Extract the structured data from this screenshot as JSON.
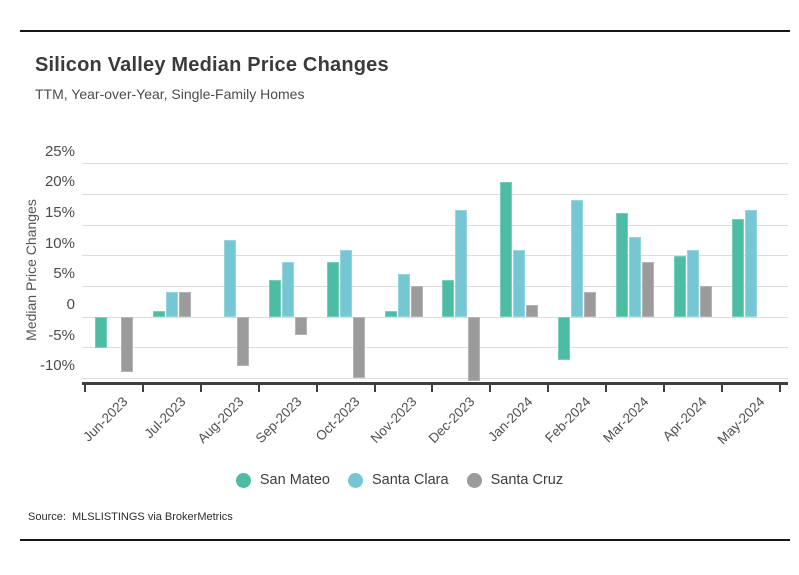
{
  "header": {
    "title": "Silicon Valley Median Price Changes",
    "subtitle": "TTM, Year-over-Year, Single-Family Homes"
  },
  "chart_data": {
    "type": "bar",
    "title": "Silicon Valley Median Price Changes",
    "subtitle": "TTM, Year-over-Year, Single-Family Homes",
    "xlabel": "",
    "ylabel": "Median Price Changes",
    "ylim": [
      -12.5,
      27.5
    ],
    "grid": true,
    "legend_position": "bottom",
    "categories": [
      "Jun-2023",
      "Jul-2023",
      "Aug-2023",
      "Sep-2023",
      "Oct-2023",
      "Nov-2023",
      "Dec-2023",
      "Jan-2024",
      "Feb-2024",
      "Mar-2024",
      "Apr-2024",
      "May-2024"
    ],
    "yticks": [
      {
        "value": 25,
        "label": "25%"
      },
      {
        "value": 20,
        "label": "20%"
      },
      {
        "value": 15,
        "label": "15%"
      },
      {
        "value": 10,
        "label": "10%"
      },
      {
        "value": 5,
        "label": "5%"
      },
      {
        "value": 0,
        "label": "0"
      },
      {
        "value": -5,
        "label": "-5%"
      },
      {
        "value": -10,
        "label": "-10%"
      }
    ],
    "series": [
      {
        "name": "San Mateo",
        "color": "#4dbca4",
        "values": [
          -5,
          1,
          0,
          6,
          9,
          1,
          6,
          22,
          -7,
          17,
          10,
          16
        ]
      },
      {
        "name": "Santa Clara",
        "color": "#74c7d3",
        "values": [
          0,
          4,
          12.5,
          9,
          11,
          7,
          17.5,
          11,
          19,
          13,
          11,
          17.5
        ]
      },
      {
        "name": "Santa Cruz",
        "color": "#9b9b9b",
        "values": [
          -9,
          4,
          -8,
          -3,
          -10,
          5,
          -10.5,
          2,
          4,
          9,
          5,
          0
        ]
      }
    ]
  },
  "footer": {
    "source": "Source:  MLSLISTINGS via BrokerMetrics"
  }
}
